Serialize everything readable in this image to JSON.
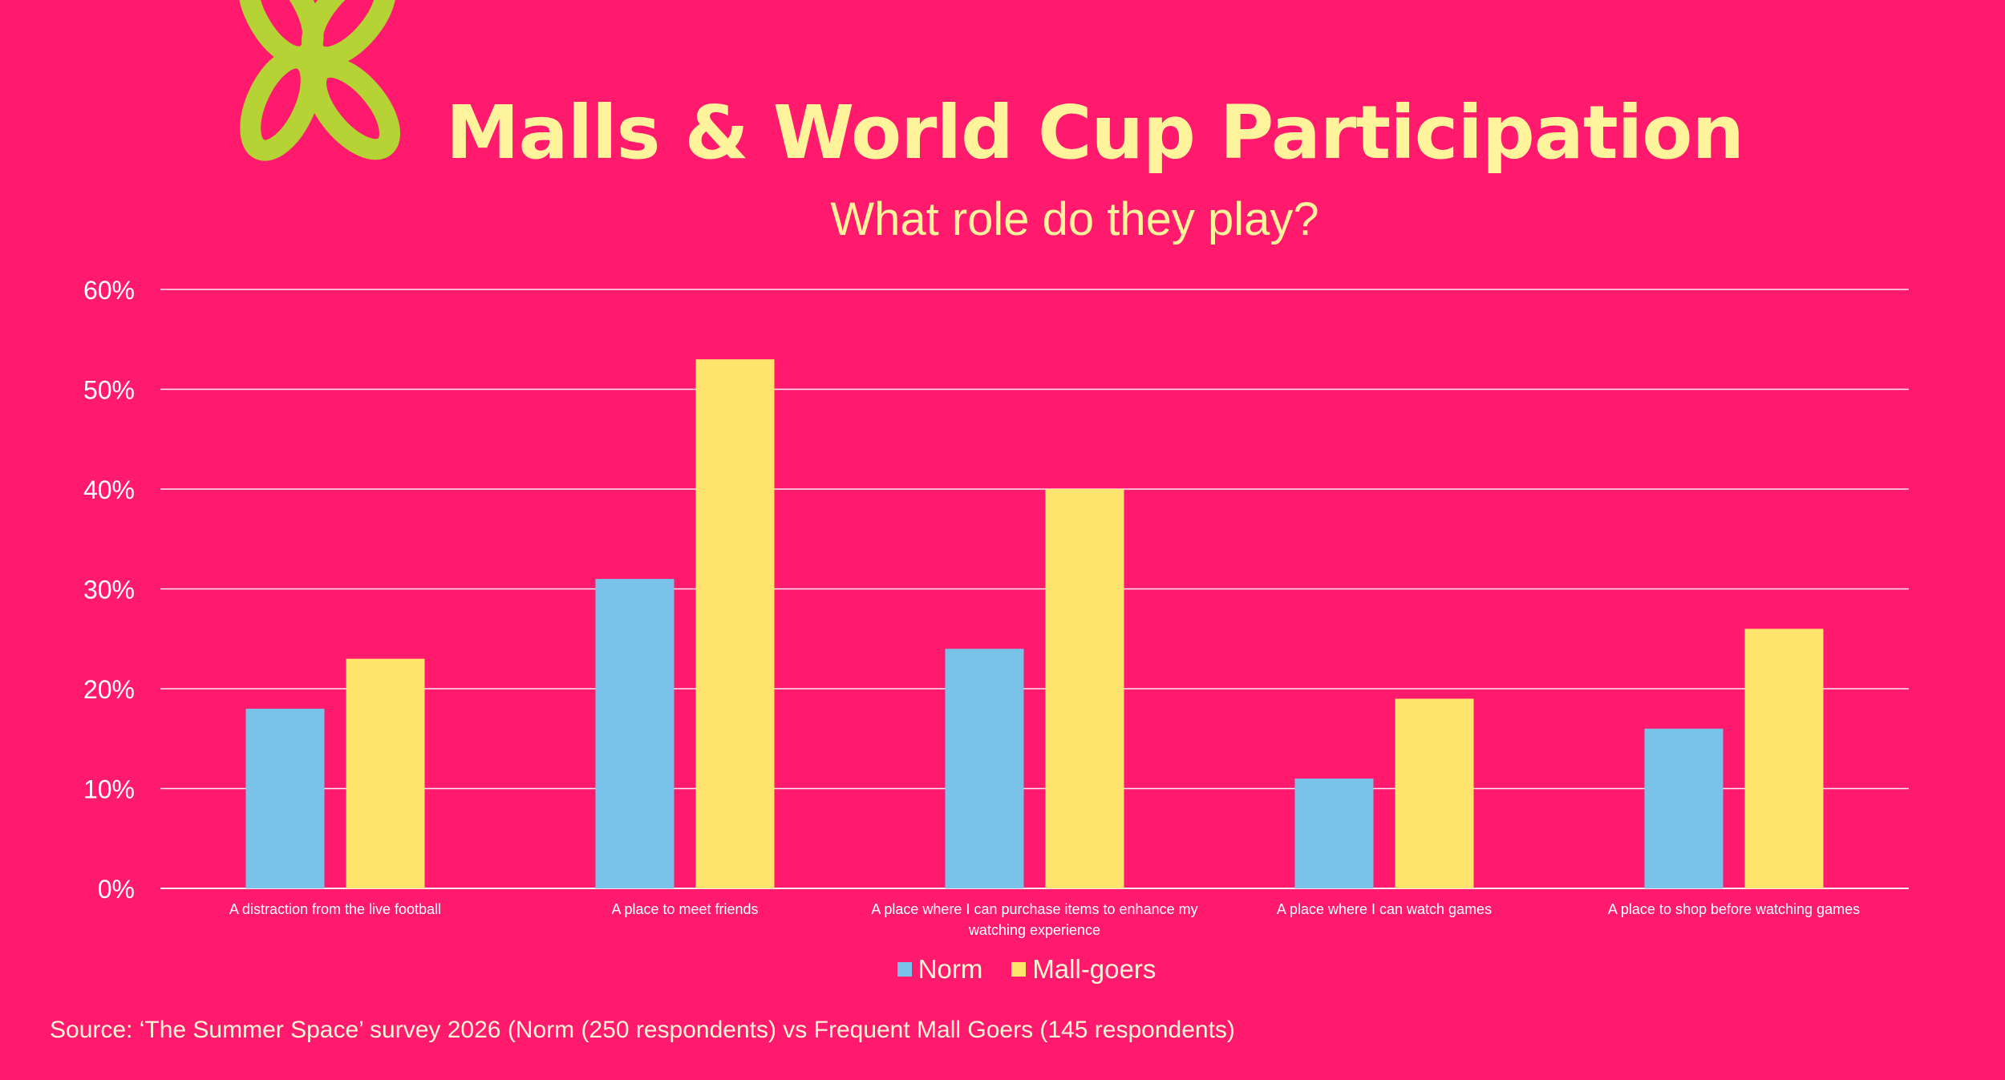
{
  "header": {
    "title": "Malls & World Cup Participation",
    "subtitle": "What role do they play?"
  },
  "footer": {
    "source": "Source: ‘The Summer Space’ survey 2026 (Norm (250 respondents) vs Frequent Mall Goers (145 respondents)"
  },
  "colors": {
    "background": "#FF1A6E",
    "title": "#FFF49B",
    "norm": "#7AC3E8",
    "mall_goers": "#FFE46E",
    "logo": "#B5D334",
    "text": "#FFF5D6"
  },
  "chart_data": {
    "type": "bar",
    "categories": [
      "A distraction from the live football",
      "A place to meet friends",
      "A place where I can purchase items to enhance my watching experience",
      "A place where I can watch games",
      "A place to shop before watching games"
    ],
    "category_lines": [
      [
        "A distraction from the live football"
      ],
      [
        "A place to meet friends"
      ],
      [
        "A place where I can purchase items to enhance my",
        "watching experience"
      ],
      [
        "A place where I can watch games"
      ],
      [
        "A place to shop before watching games"
      ]
    ],
    "series": [
      {
        "name": "Norm",
        "values": [
          18,
          31,
          24,
          11,
          16
        ]
      },
      {
        "name": "Mall-goers",
        "values": [
          23,
          53,
          40,
          19,
          26
        ]
      }
    ],
    "ylim": [
      0,
      60
    ],
    "yticks": [
      "0%",
      "10%",
      "20%",
      "30%",
      "40%",
      "50%",
      "60%"
    ],
    "grid": true,
    "legend_position": "bottom"
  }
}
